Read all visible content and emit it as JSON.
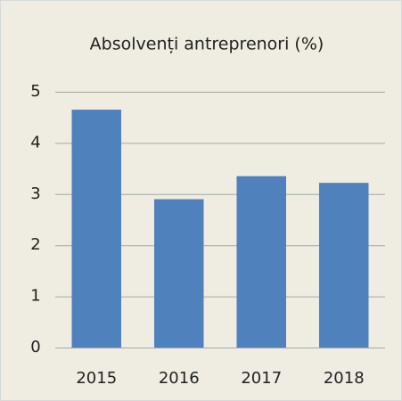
{
  "chart_data": {
    "type": "bar",
    "title": "Absolvenți antreprenori (%)",
    "categories": [
      "2015",
      "2016",
      "2017",
      "2018"
    ],
    "values": [
      4.65,
      2.9,
      3.35,
      3.22
    ],
    "color": "#4f81bd",
    "ylim": [
      0,
      5
    ],
    "yticks": [
      0,
      1,
      2,
      3,
      4,
      5
    ],
    "grid": true
  }
}
